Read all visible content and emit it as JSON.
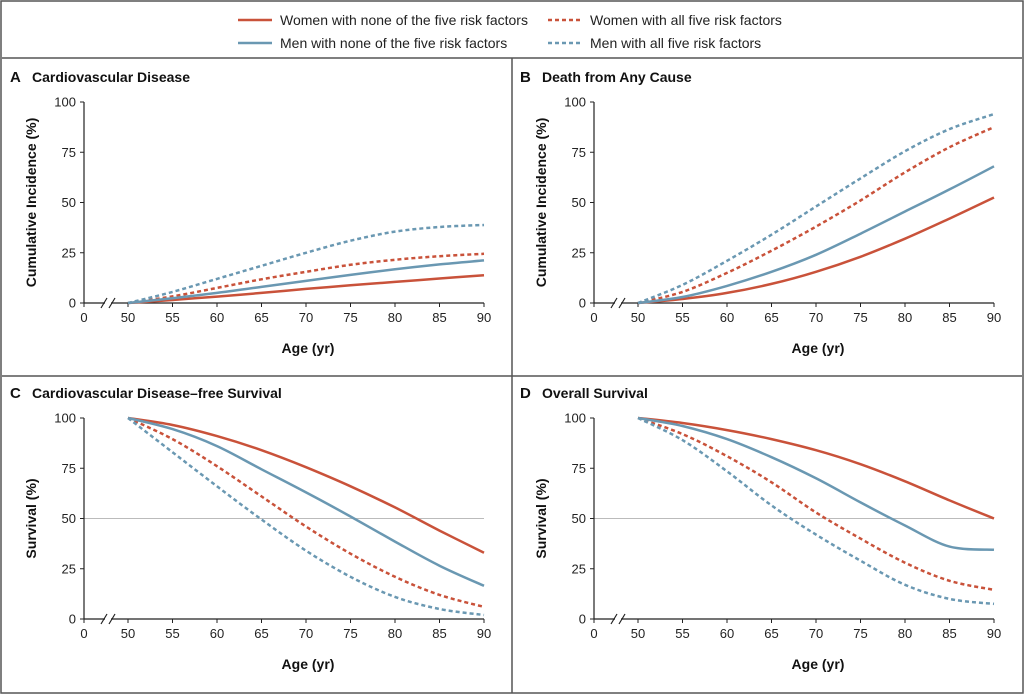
{
  "colors": {
    "women": "#c9523a",
    "men": "#6a98b2",
    "frame": "#555555",
    "refline": "#bbbbbb"
  },
  "legend": [
    {
      "label": "Women with none of the five risk factors",
      "color": "#c9523a",
      "dash": "solid"
    },
    {
      "label": "Women with all five risk factors",
      "color": "#c9523a",
      "dash": "dashed"
    },
    {
      "label": "Men with none of the five risk factors",
      "color": "#6a98b2",
      "dash": "solid"
    },
    {
      "label": "Men with all five risk factors",
      "color": "#6a98b2",
      "dash": "dashed"
    }
  ],
  "chart_data": [
    {
      "type": "line",
      "panel": "A",
      "title": "Cardiovascular Disease",
      "xlabel": "Age (yr)",
      "ylabel": "Cumulative Incidence (%)",
      "xticks": [
        0,
        50,
        55,
        60,
        65,
        70,
        75,
        80,
        85,
        90
      ],
      "yticks": [
        0,
        25,
        50,
        75,
        100
      ],
      "xlim": [
        50,
        90
      ],
      "ylim": [
        0,
        100
      ],
      "axis_break": true,
      "x": [
        50,
        55,
        60,
        65,
        70,
        75,
        80,
        85,
        90
      ],
      "series": [
        {
          "name": "Women with none of the five risk factors",
          "values": [
            0,
            1.5,
            3.2,
            5,
            7,
            8.8,
            10.5,
            12.2,
            13.8
          ]
        },
        {
          "name": "Women with all five risk factors",
          "values": [
            0,
            3.3,
            7.5,
            11.8,
            15.5,
            19,
            21.5,
            23.3,
            24.5
          ]
        },
        {
          "name": "Men with none of the five risk factors",
          "values": [
            0,
            2.4,
            5,
            8,
            11,
            14,
            16.8,
            19.2,
            21.2
          ]
        },
        {
          "name": "Men with all five risk factors",
          "values": [
            0,
            5.5,
            12,
            18.5,
            25,
            31,
            35.5,
            37.8,
            38.8
          ]
        }
      ]
    },
    {
      "type": "line",
      "panel": "B",
      "title": "Death from Any Cause",
      "xlabel": "Age (yr)",
      "ylabel": "Cumulative Incidence (%)",
      "xticks": [
        0,
        50,
        55,
        60,
        65,
        70,
        75,
        80,
        85,
        90
      ],
      "yticks": [
        0,
        25,
        50,
        75,
        100
      ],
      "xlim": [
        50,
        90
      ],
      "ylim": [
        0,
        100
      ],
      "axis_break": true,
      "x": [
        50,
        55,
        60,
        65,
        70,
        75,
        80,
        85,
        90
      ],
      "series": [
        {
          "name": "Women with none of the five risk factors",
          "values": [
            0,
            2,
            5,
            9.5,
            15.5,
            23,
            32,
            42,
            52.5
          ]
        },
        {
          "name": "Women with all five risk factors",
          "values": [
            0,
            5.5,
            15,
            26,
            38,
            51,
            65,
            77.5,
            87.5
          ]
        },
        {
          "name": "Men with none of the five risk factors",
          "values": [
            0,
            3,
            8.5,
            15.5,
            24,
            34.5,
            45.5,
            56.5,
            68
          ]
        },
        {
          "name": "Men with all five risk factors",
          "values": [
            0,
            9,
            21,
            34,
            48,
            62,
            75.5,
            86.5,
            94
          ]
        }
      ]
    },
    {
      "type": "line",
      "panel": "C",
      "title": "Cardiovascular Disease–free Survival",
      "xlabel": "Age (yr)",
      "ylabel": "Survival (%)",
      "xticks": [
        0,
        50,
        55,
        60,
        65,
        70,
        75,
        80,
        85,
        90
      ],
      "yticks": [
        0,
        25,
        50,
        75,
        100
      ],
      "xlim": [
        50,
        90
      ],
      "ylim": [
        0,
        100
      ],
      "axis_break": true,
      "reference_line": 50,
      "x": [
        50,
        55,
        60,
        65,
        70,
        75,
        80,
        85,
        90
      ],
      "series": [
        {
          "name": "Women with none of the five risk factors",
          "values": [
            100,
            96.5,
            91,
            84,
            75.5,
            66,
            55.5,
            44,
            33
          ]
        },
        {
          "name": "Women with all five risk factors",
          "values": [
            100,
            89.5,
            76,
            61,
            46,
            32.5,
            21,
            12,
            6
          ]
        },
        {
          "name": "Men with none of the five risk factors",
          "values": [
            100,
            94.5,
            86,
            74.5,
            63,
            51,
            38.5,
            26.5,
            16.5
          ]
        },
        {
          "name": "Men with all five risk factors",
          "values": [
            100,
            83,
            66,
            49.5,
            34,
            21,
            11,
            5,
            2
          ]
        }
      ]
    },
    {
      "type": "line",
      "panel": "D",
      "title": "Overall Survival",
      "xlabel": "Age (yr)",
      "ylabel": "Survival (%)",
      "xticks": [
        0,
        50,
        55,
        60,
        65,
        70,
        75,
        80,
        85,
        90
      ],
      "yticks": [
        0,
        25,
        50,
        75,
        100
      ],
      "xlim": [
        50,
        90
      ],
      "ylim": [
        0,
        100
      ],
      "axis_break": true,
      "reference_line": 50,
      "x": [
        50,
        55,
        60,
        65,
        70,
        75,
        80,
        85,
        90
      ],
      "series": [
        {
          "name": "Women with none of the five risk factors",
          "values": [
            100,
            97.5,
            94,
            89.5,
            84,
            77,
            68.5,
            59,
            50
          ]
        },
        {
          "name": "Women with all five risk factors",
          "values": [
            100,
            92,
            81,
            68,
            53,
            40,
            28,
            19,
            14.5
          ]
        },
        {
          "name": "Men with none of the five risk factors",
          "values": [
            100,
            96,
            89.5,
            80.5,
            70,
            58,
            46.5,
            36,
            34.5
          ]
        },
        {
          "name": "Men with all five risk factors",
          "values": [
            100,
            89,
            73.5,
            56.5,
            42,
            29,
            17,
            10,
            7.5
          ]
        }
      ]
    }
  ]
}
